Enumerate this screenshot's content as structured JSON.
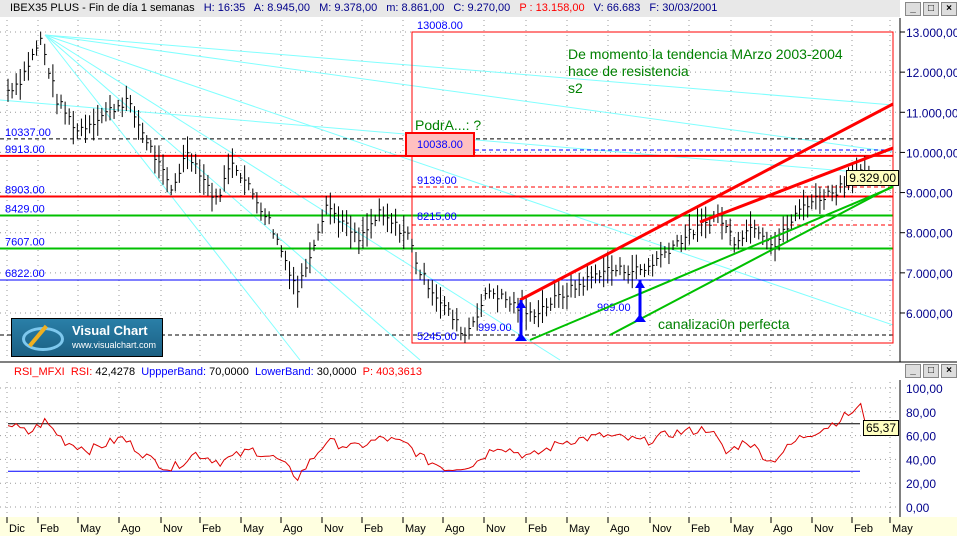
{
  "header": {
    "symbol": "IBEX35 PLUS - Fin de día 1 semanas",
    "h": "H: 16:35",
    "a": "A: 8.945,00",
    "m": "M: 9.378,00",
    "mn": "m: 8.861,00",
    "c": "C: 9.270,00",
    "p": "P : 13.158,00",
    "v": "V: 66.683",
    "f": "F: 30/03/2001"
  },
  "rsi_header": {
    "name": "RSI_MFXI",
    "rsi_label": "RSI:",
    "rsi_value": "42,4278",
    "upper_label": "UppperBand:",
    "upper_value": "70,0000",
    "lower_label": "LowerBand:",
    "lower_value": "30,0000",
    "p": "P: 403,3613"
  },
  "logo": {
    "title": "Visual Chart",
    "url": "www.visualchart.com"
  },
  "colors": {
    "support": "#00c000",
    "resistance": "#ff0000",
    "fan": "#80ffff",
    "blue": "#0000ff",
    "axis_text": "#00008b"
  },
  "chart_data": [
    {
      "type": "bar",
      "title": "IBEX35 PLUS weekly",
      "ylim": [
        5000,
        13300
      ],
      "yticks": [
        "13.000,00",
        "12.000,00",
        "11.000,00",
        "10.000,00",
        "9.000,00",
        "8.000,00",
        "7.000,00",
        "6.000,00"
      ],
      "ytick_values": [
        13000,
        12000,
        11000,
        10000,
        9000,
        8000,
        7000,
        6000
      ],
      "xticks": [
        "Dic",
        "Feb",
        "May",
        "Ago",
        "Nov",
        "Feb",
        "May",
        "Ago",
        "Nov",
        "Feb",
        "May",
        "Ago",
        "Nov",
        "Feb",
        "May",
        "Ago",
        "Nov",
        "Feb",
        "May",
        "Ago",
        "Nov",
        "Feb",
        "May"
      ],
      "last_price": "9.329,00",
      "price_path": [
        [
          0,
          11550
        ],
        [
          3,
          11800
        ],
        [
          8,
          12800
        ],
        [
          12,
          11300
        ],
        [
          17,
          10550
        ],
        [
          29,
          11300
        ],
        [
          34,
          10300
        ],
        [
          40,
          9050
        ],
        [
          44,
          10050
        ],
        [
          51,
          8800
        ],
        [
          55,
          9800
        ],
        [
          64,
          8300
        ],
        [
          71,
          6570
        ],
        [
          78,
          8700
        ],
        [
          86,
          7800
        ],
        [
          91,
          8450
        ],
        [
          98,
          7950
        ],
        [
          101,
          7000
        ],
        [
          106,
          6300
        ],
        [
          112,
          5450
        ],
        [
          118,
          6570
        ],
        [
          128,
          5950
        ],
        [
          136,
          6450
        ],
        [
          146,
          7070
        ],
        [
          156,
          7070
        ],
        [
          163,
          7700
        ],
        [
          174,
          8440
        ],
        [
          178,
          7820
        ],
        [
          183,
          8200
        ],
        [
          188,
          7700
        ],
        [
          195,
          8700
        ],
        [
          203,
          9060
        ],
        [
          208,
          9560
        ],
        [
          211,
          9370
        ]
      ],
      "levels": [
        {
          "label": "10337.00",
          "value": 10337,
          "style": "dashed-black"
        },
        {
          "label": "9913.00",
          "value": 9913,
          "style": "red"
        },
        {
          "label": "8903.00",
          "value": 8903,
          "style": "red"
        },
        {
          "label": "8429.00",
          "value": 8429,
          "style": "green"
        },
        {
          "label": "7607.00",
          "value": 7607,
          "style": "green"
        },
        {
          "label": "6822.00",
          "value": 6822,
          "style": "blue"
        }
      ],
      "box_labels": [
        "13008.00",
        "10038.00",
        "9139.00",
        "8215.00",
        "5245.00",
        "999.00",
        "999.00"
      ],
      "annotations": [
        "De momento la tendencia MArzo 2003-2004",
        "hace de resistencia",
        "s2",
        "PodrA...: ?",
        "canalizaci0n perfecta"
      ]
    },
    {
      "type": "line",
      "title": "RSI_MFXI",
      "ylim": [
        0,
        100
      ],
      "yticks": [
        "100,00",
        "80,00",
        "60,00",
        "40,00",
        "20,00",
        "0,00"
      ],
      "ytick_values": [
        100,
        80,
        60,
        40,
        20,
        0
      ],
      "upper_band": 70,
      "lower_band": 30,
      "last_value": "65,37",
      "rsi_path": [
        [
          0,
          70
        ],
        [
          5,
          62
        ],
        [
          9,
          72
        ],
        [
          14,
          55
        ],
        [
          20,
          48
        ],
        [
          28,
          58
        ],
        [
          35,
          40
        ],
        [
          40,
          32
        ],
        [
          46,
          45
        ],
        [
          52,
          38
        ],
        [
          60,
          48
        ],
        [
          66,
          40
        ],
        [
          71,
          25
        ],
        [
          78,
          55
        ],
        [
          85,
          50
        ],
        [
          92,
          58
        ],
        [
          98,
          52
        ],
        [
          102,
          40
        ],
        [
          108,
          32
        ],
        [
          114,
          36
        ],
        [
          120,
          52
        ],
        [
          128,
          42
        ],
        [
          136,
          55
        ],
        [
          146,
          60
        ],
        [
          156,
          55
        ],
        [
          163,
          62
        ],
        [
          172,
          66
        ],
        [
          176,
          45
        ],
        [
          181,
          56
        ],
        [
          187,
          38
        ],
        [
          194,
          58
        ],
        [
          201,
          68
        ],
        [
          207,
          80
        ],
        [
          209,
          84
        ],
        [
          211,
          65
        ]
      ]
    }
  ]
}
